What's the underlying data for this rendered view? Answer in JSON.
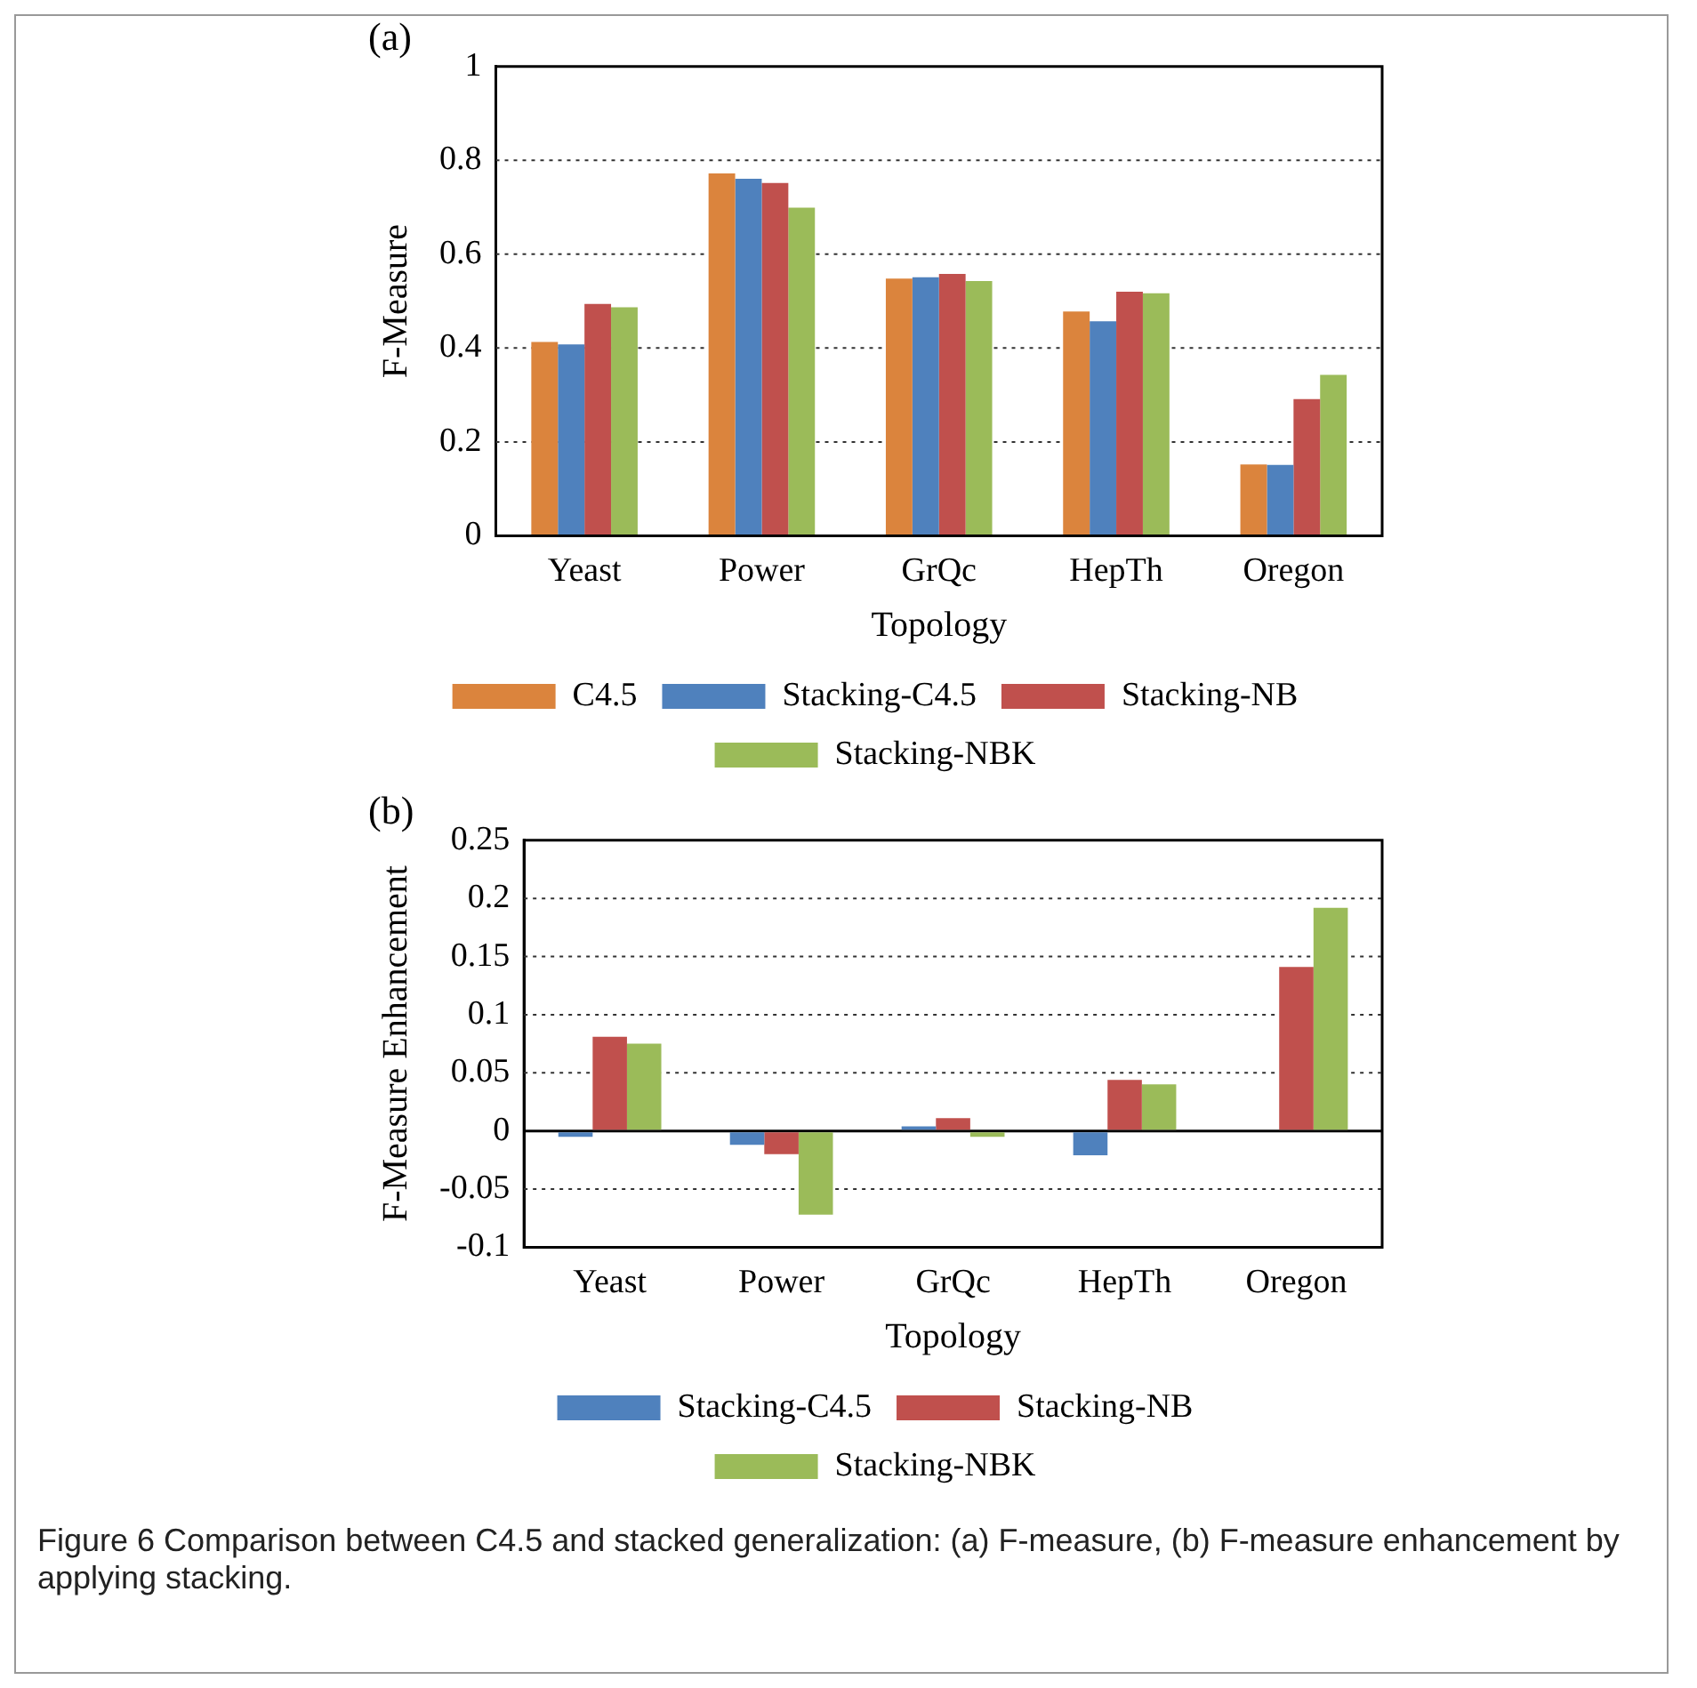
{
  "chart_data": [
    {
      "type": "bar",
      "title": "(a)",
      "xlabel": "Topology",
      "ylabel": "F-Measure",
      "categories": [
        "Yeast",
        "Power",
        "GrQc",
        "HepTh",
        "Oregon"
      ],
      "series": [
        {
          "name": "C4.5",
          "color": "#db843d",
          "values": [
            0.413,
            0.772,
            0.548,
            0.478,
            0.152
          ]
        },
        {
          "name": "Stacking-C4.5",
          "color": "#4f81bd",
          "values": [
            0.408,
            0.761,
            0.551,
            0.457,
            0.151
          ]
        },
        {
          "name": "Stacking-NB",
          "color": "#c0504d",
          "values": [
            0.494,
            0.752,
            0.558,
            0.52,
            0.291
          ]
        },
        {
          "name": "Stacking-NBK",
          "color": "#9bbb59",
          "values": [
            0.487,
            0.699,
            0.543,
            0.517,
            0.343
          ]
        }
      ],
      "ylim": [
        0,
        1
      ],
      "yticks": [
        0,
        0.2,
        0.4,
        0.6,
        0.8,
        1
      ],
      "grid": "y",
      "legend": "bottom"
    },
    {
      "type": "bar",
      "title": "(b)",
      "xlabel": "Topology",
      "ylabel": "F-Measure Enhancement",
      "categories": [
        "Yeast",
        "Power",
        "GrQc",
        "HepTh",
        "Oregon"
      ],
      "series": [
        {
          "name": "Stacking-C4.5",
          "color": "#4f81bd",
          "values": [
            -0.005,
            -0.012,
            0.004,
            -0.021,
            null
          ]
        },
        {
          "name": "Stacking-NB",
          "color": "#c0504d",
          "values": [
            0.081,
            -0.02,
            0.011,
            0.044,
            0.141
          ]
        },
        {
          "name": "Stacking-NBK",
          "color": "#9bbb59",
          "values": [
            0.075,
            -0.072,
            -0.005,
            0.04,
            0.192
          ]
        }
      ],
      "ylim": [
        -0.1,
        0.25
      ],
      "yticks": [
        -0.1,
        -0.05,
        0,
        0.05,
        0.1,
        0.15,
        0.2,
        0.25
      ],
      "grid": "y",
      "legend": "bottom",
      "annotations": [
        "Figure 6  Comparison between C4.5 and stacked generalization: (a) F-measure, (b) F-measure enhancement by applying stacking."
      ]
    }
  ]
}
